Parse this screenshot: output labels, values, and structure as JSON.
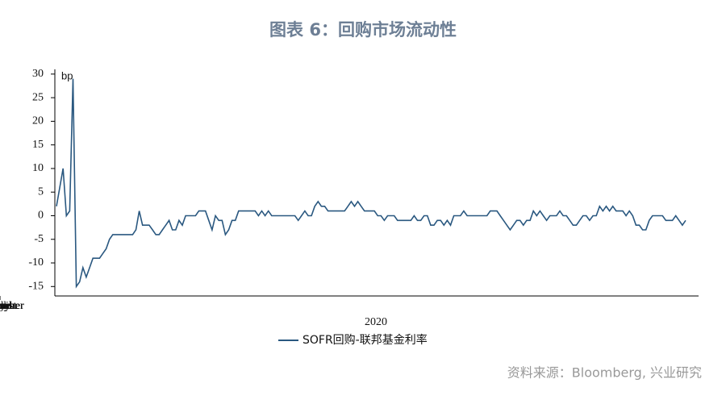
{
  "chart_data": {
    "type": "line",
    "title": "图表 6：回购市场流动性",
    "y_unit_label": "bp",
    "x_axis_label": "2020",
    "source": "资料来源：Bloomberg, 兴业研究",
    "categories": [
      "March",
      "April",
      "May",
      "June",
      "July",
      "August",
      "September",
      "October",
      "November"
    ],
    "series": [
      {
        "name": "SOFR回购-联邦基金利率",
        "color": "#2a5880",
        "values": [
          [
            2,
            6,
            10,
            0,
            1,
            29,
            -15,
            -14,
            -11,
            -13,
            -11,
            -9,
            -9,
            -9,
            -8,
            -7
          ],
          [
            -5,
            -4,
            -4,
            -4,
            -4,
            -4,
            -4,
            -4,
            -3,
            1,
            -2,
            -2,
            -2,
            -3,
            -4,
            -4,
            -3,
            -2,
            -1,
            -3
          ],
          [
            -3,
            -1,
            -2,
            0,
            0,
            0,
            0,
            1,
            1,
            1,
            -1,
            -3,
            0,
            -1,
            -1,
            -4,
            -3,
            -1,
            -1,
            1,
            1
          ],
          [
            1,
            1,
            1,
            1,
            0,
            1,
            0,
            1,
            0,
            0,
            0,
            0,
            0,
            0,
            0,
            0,
            -1,
            0,
            1,
            0,
            0
          ],
          [
            2,
            3,
            2,
            2,
            1,
            1,
            1,
            1,
            1,
            1,
            2,
            3,
            2,
            3,
            2,
            1,
            1,
            1,
            1,
            0,
            0,
            -1
          ],
          [
            0,
            0,
            0,
            -1,
            -1,
            -1,
            -1,
            -1,
            0,
            -1,
            -1,
            0,
            0,
            -2,
            -2,
            -1,
            -1,
            -2,
            -1,
            -2,
            0
          ],
          [
            0,
            0,
            1,
            0,
            0,
            0,
            0,
            0,
            0,
            0,
            1,
            1,
            1,
            0,
            -1,
            -2,
            -3,
            -2,
            -1,
            -1,
            -2
          ],
          [
            -1,
            -1,
            1,
            0,
            1,
            0,
            -1,
            0,
            0,
            0,
            1,
            0,
            0,
            -1,
            -2,
            -2,
            -1,
            0,
            0,
            -1,
            0,
            0
          ],
          [
            2,
            1,
            2,
            1,
            2,
            1,
            1,
            1,
            0,
            1,
            0,
            -2,
            -2,
            -3,
            -3,
            -1,
            0,
            0,
            0,
            0,
            -1,
            -1,
            -1,
            0,
            -1,
            -2,
            -1
          ]
        ]
      }
    ],
    "ylim": [
      -17,
      31
    ],
    "yticks": [
      -15,
      -10,
      -5,
      0,
      5,
      10,
      15,
      20,
      25,
      30
    ],
    "grid": false
  }
}
